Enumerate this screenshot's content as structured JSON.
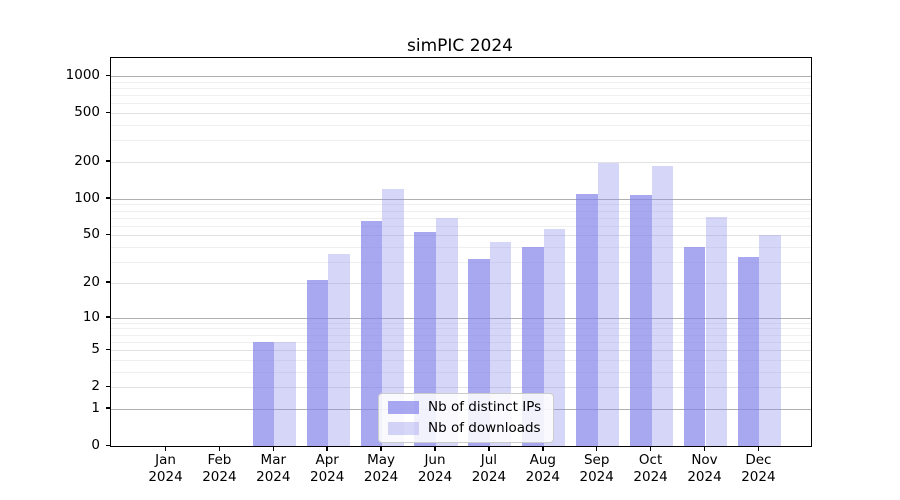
{
  "chart_data": {
    "type": "bar",
    "title": "simPIC 2024",
    "categories": [
      "Jan",
      "Feb",
      "Mar",
      "Apr",
      "May",
      "Jun",
      "Jul",
      "Aug",
      "Sep",
      "Oct",
      "Nov",
      "Dec"
    ],
    "category_year": "2024",
    "series": [
      {
        "name": "Nb of distinct IPs",
        "color": "rgba(131,131,235,0.70)",
        "values": [
          0,
          0,
          6,
          21,
          66,
          53,
          32,
          40,
          110,
          108,
          40,
          33
        ]
      },
      {
        "name": "Nb of downloads",
        "color": "rgba(140,140,235,0.36)",
        "values": [
          0,
          0,
          6,
          35,
          121,
          70,
          44,
          56,
          196,
          187,
          71,
          50
        ]
      }
    ],
    "yscale": "log1p",
    "yticks": [
      0,
      1,
      2,
      5,
      10,
      20,
      50,
      100,
      200,
      500,
      1000
    ],
    "ytick_labels": [
      "0",
      "1",
      "2",
      "5",
      "10",
      "20",
      "50",
      "100",
      "200",
      "500",
      "1000"
    ],
    "ylim": [
      0,
      1400
    ],
    "grid": "horizontal",
    "legend_position": "lower-center-inside",
    "colors": {
      "grid_major": "#b0b0b0",
      "grid_mid": "#e2e2e2",
      "grid_minor": "#efefef",
      "spine": "#000000"
    }
  }
}
